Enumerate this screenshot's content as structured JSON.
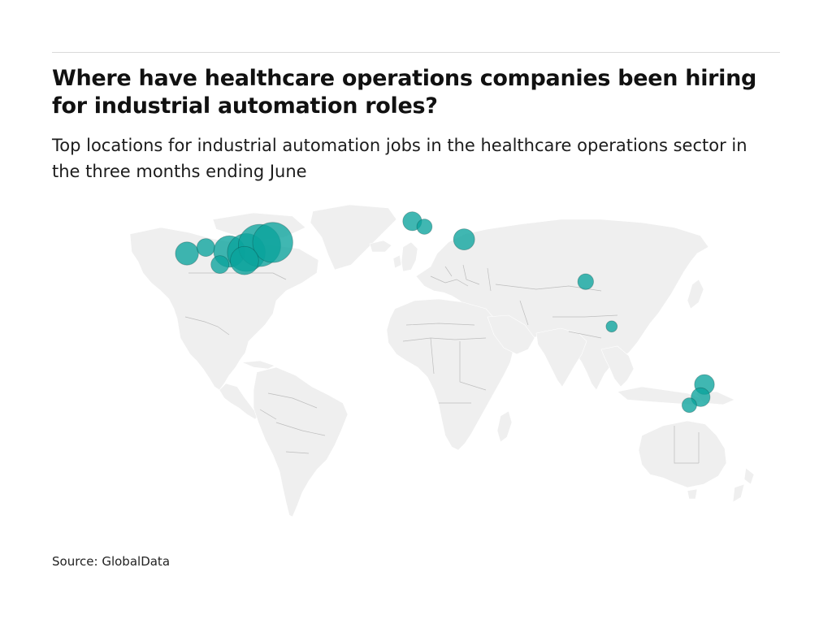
{
  "header": {
    "title": "Where have healthcare operations companies been hiring for industrial automation roles?",
    "subtitle": "Top locations for industrial automation jobs in the healthcare operations sector in the three months ending June"
  },
  "footer": {
    "source": "Source: GlobalData"
  },
  "colors": {
    "land": "#efefef",
    "border": "#bdbdbd",
    "bubble": "#0aa39c",
    "bubble_dark": "#0b3b3a"
  },
  "map": {
    "type": "bubble-map",
    "locations": [
      {
        "region": "United States - West Coast",
        "lon": -121.5,
        "lat": 37.5,
        "relative_size": 0.3
      },
      {
        "region": "United States - Mountain",
        "lon": -111.5,
        "lat": 40.5,
        "relative_size": 0.18
      },
      {
        "region": "United States - Central",
        "lon": -99.0,
        "lat": 38.5,
        "relative_size": 0.55
      },
      {
        "region": "United States - Midwest",
        "lon": -90.0,
        "lat": 38.0,
        "relative_size": 0.8
      },
      {
        "region": "United States - Great Lakes",
        "lon": -83.0,
        "lat": 41.5,
        "relative_size": 1.0
      },
      {
        "region": "United States - Northeast",
        "lon": -76.0,
        "lat": 43.0,
        "relative_size": 0.9
      },
      {
        "region": "United States - South",
        "lon": -91.0,
        "lat": 34.0,
        "relative_size": 0.45
      },
      {
        "region": "United States - Southwest",
        "lon": -104.0,
        "lat": 32.0,
        "relative_size": 0.18
      },
      {
        "region": "United Kingdom",
        "lon": -2.0,
        "lat": 53.5,
        "relative_size": 0.2
      },
      {
        "region": "Belgium",
        "lon": 4.5,
        "lat": 50.8,
        "relative_size": 0.13
      },
      {
        "region": "Romania",
        "lon": 25.5,
        "lat": 44.5,
        "relative_size": 0.25
      },
      {
        "region": "Bangladesh",
        "lon": 90.0,
        "lat": 23.5,
        "relative_size": 0.14
      },
      {
        "region": "Singapore",
        "lon": 103.8,
        "lat": 1.3,
        "relative_size": 0.07
      },
      {
        "region": "Australia - Queensland",
        "lon": 153.0,
        "lat": -27.5,
        "relative_size": 0.22
      },
      {
        "region": "Australia - New South Wales",
        "lon": 151.0,
        "lat": -33.8,
        "relative_size": 0.2
      },
      {
        "region": "Australia - Victoria",
        "lon": 145.0,
        "lat": -37.8,
        "relative_size": 0.12
      }
    ]
  }
}
